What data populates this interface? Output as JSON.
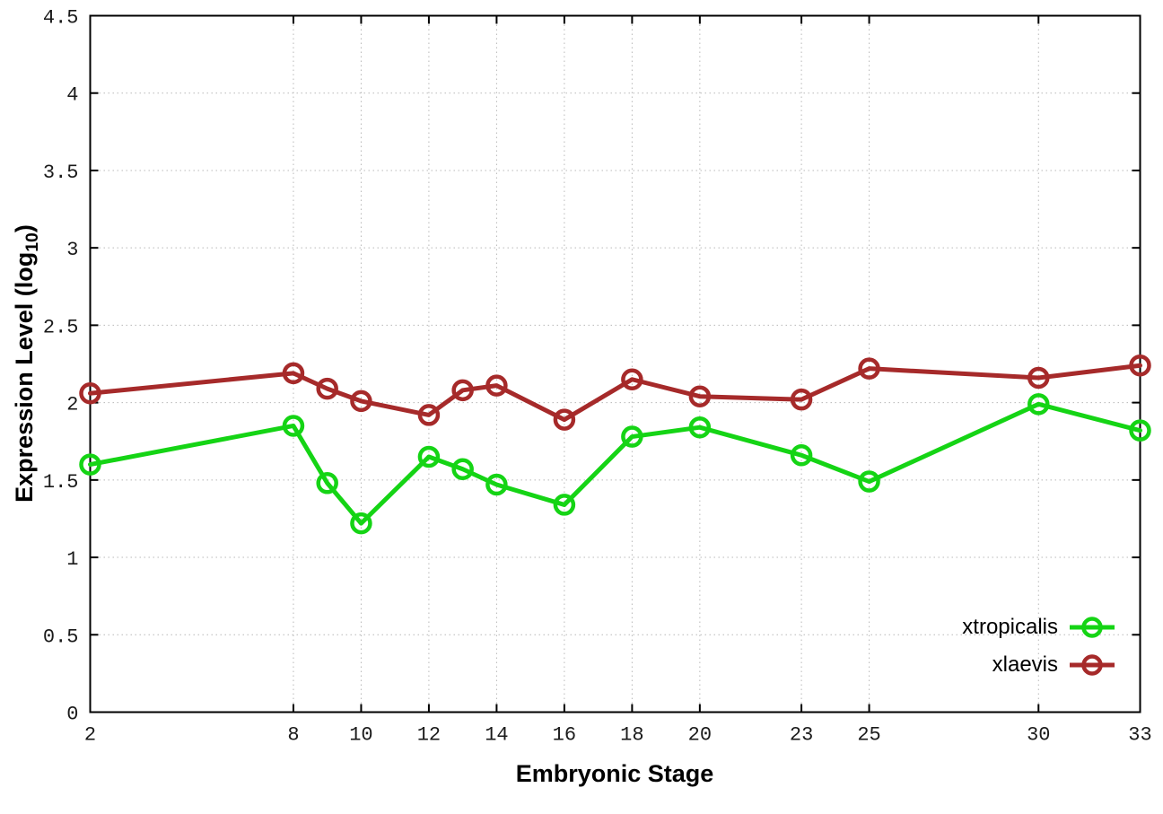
{
  "chart_data": {
    "type": "line",
    "x": [
      2,
      8,
      9,
      10,
      12,
      13,
      14,
      16,
      18,
      20,
      23,
      25,
      30,
      33
    ],
    "series": [
      {
        "name": "xtropicalis",
        "color": "#15d415",
        "values": [
          1.6,
          1.85,
          1.48,
          1.22,
          1.65,
          1.57,
          1.47,
          1.34,
          1.78,
          1.84,
          1.66,
          1.49,
          1.99,
          1.82
        ]
      },
      {
        "name": "xlaevis",
        "color": "#a62a2a",
        "values": [
          2.06,
          2.19,
          2.09,
          2.01,
          1.92,
          2.08,
          2.11,
          1.89,
          2.15,
          2.04,
          2.02,
          2.22,
          2.16,
          2.24
        ]
      }
    ],
    "xlabel": "Embryonic Stage",
    "ylabel": "Expression Level (log10)",
    "ylabel_parts": {
      "prefix": "Expression Level (log",
      "sub": "10",
      "suffix": ")"
    },
    "xlim": [
      2,
      33
    ],
    "ylim": [
      0,
      4.5
    ],
    "xticks": [
      2,
      8,
      10,
      12,
      14,
      16,
      18,
      20,
      23,
      25,
      30,
      33
    ],
    "yticks": [
      0,
      0.5,
      1,
      1.5,
      2,
      2.5,
      3,
      3.5,
      4,
      4.5
    ],
    "grid": true,
    "grid_style": "dotted",
    "grid_color": "#b8b8b8",
    "axis_color": "#000000",
    "tick_label_color": "#1a1a1a",
    "legend_position": "inside-bottom-right",
    "marker": "open-circle"
  }
}
